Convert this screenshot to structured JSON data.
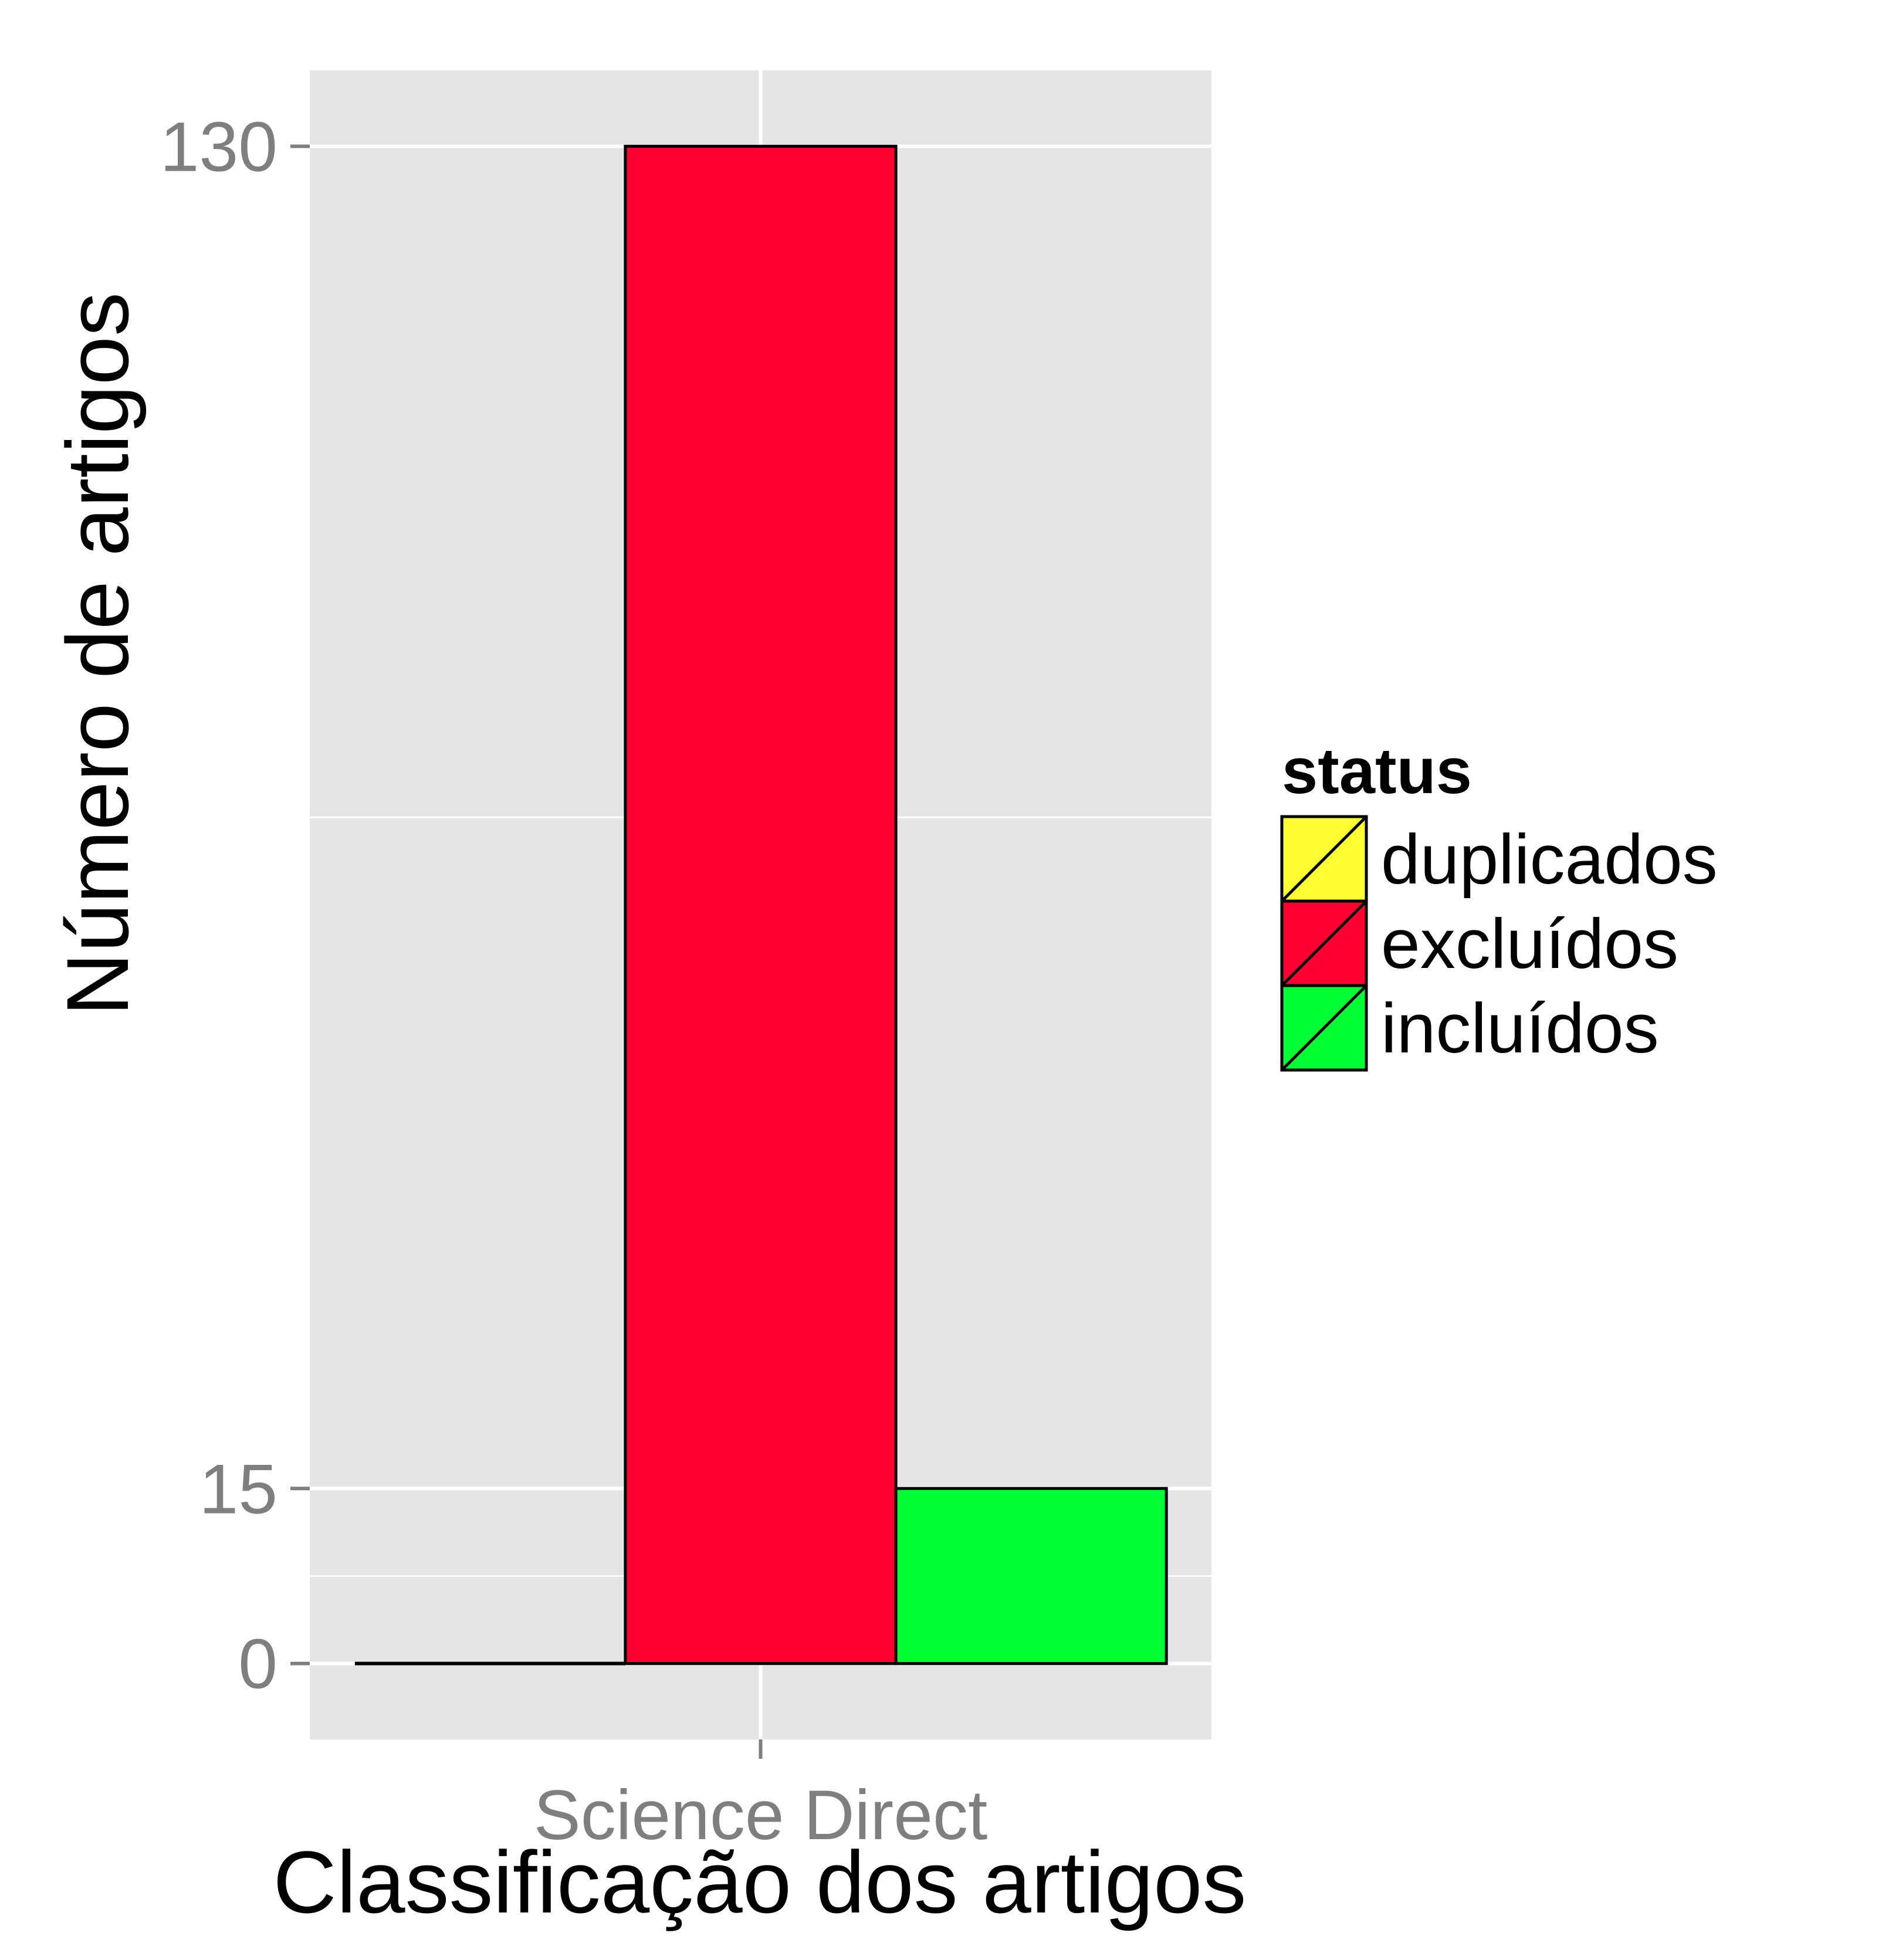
{
  "chart_data": {
    "type": "bar",
    "title": "",
    "xlabel": "Classificação dos artigos",
    "ylabel": "Número de artigos",
    "categories": [
      "Science Direct"
    ],
    "series": [
      {
        "name": "duplicados",
        "values": [
          0
        ],
        "color": "#ffff33"
      },
      {
        "name": "excluídos",
        "values": [
          130
        ],
        "color": "#ff0033"
      },
      {
        "name": "incluídos",
        "values": [
          15
        ],
        "color": "#00ff33"
      }
    ],
    "yticks": [
      {
        "value": 0,
        "label": "0"
      },
      {
        "value": 15,
        "label": "15"
      },
      {
        "value": 130,
        "label": "130"
      }
    ],
    "ylim": [
      -6.5,
      136.5
    ],
    "grid": true,
    "legend": {
      "title": "status",
      "position": "right"
    },
    "panel_color": "#e5e5e5",
    "grid_color": "#ffffff"
  }
}
